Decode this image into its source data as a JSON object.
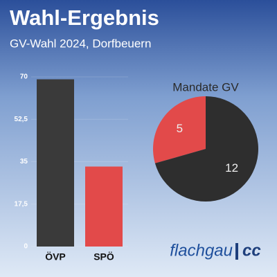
{
  "logo": {
    "text": "flachgau",
    "suffix": "cc"
  },
  "chart_data": [
    {
      "type": "bar",
      "title": "Wahl-Ergebnis",
      "subtitle": "GV-Wahl 2024, Dorfbeuern",
      "categories": [
        "ÖVP",
        "SPÖ"
      ],
      "values": [
        69,
        33
      ],
      "colors": [
        "#3a3a3a",
        "#e24a4a"
      ],
      "ylim": [
        0,
        70
      ],
      "yticks": [
        0,
        {
          "value": 17.5,
          "label": "17,5"
        },
        35,
        {
          "value": 52.5,
          "label": "52,5"
        },
        70
      ]
    },
    {
      "type": "pie",
      "title": "Mandate GV",
      "values": [
        5,
        12
      ],
      "colors": [
        "#e24a4a",
        "#2e2e2e"
      ]
    }
  ]
}
